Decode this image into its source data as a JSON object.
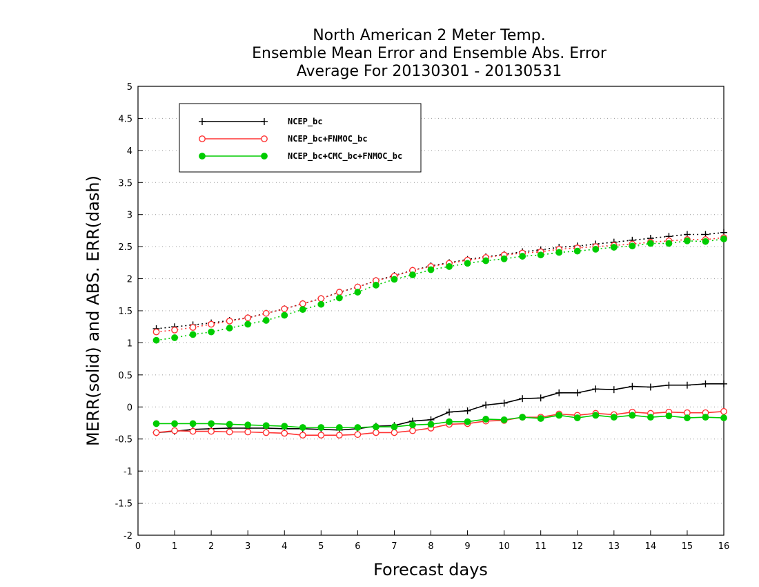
{
  "chart_data": {
    "type": "line",
    "title_lines": [
      "North American 2 Meter Temp.",
      "Ensemble Mean Error and Ensemble Abs. Error",
      "Average For 20130301 - 20130531"
    ],
    "xlabel": "Forecast days",
    "ylabel": "MERR(solid) and ABS. ERR(dash)",
    "xlim": [
      0,
      16
    ],
    "ylim": [
      -2,
      5
    ],
    "x_ticks": [
      "0",
      "1",
      "2",
      "3",
      "4",
      "5",
      "6",
      "7",
      "8",
      "9",
      "10",
      "11",
      "12",
      "13",
      "14",
      "15",
      "16"
    ],
    "y_ticks": [
      "-2",
      "-1.5",
      "-1",
      "-0.5",
      "0",
      "0.5",
      "1",
      "1.5",
      "2",
      "2.5",
      "3",
      "3.5",
      "4",
      "4.5",
      "5"
    ],
    "grid": "horizontal dotted",
    "legend_position": "top-left",
    "x": [
      0.5,
      1,
      1.5,
      2,
      2.5,
      3,
      3.5,
      4,
      4.5,
      5,
      5.5,
      6,
      6.5,
      7,
      7.5,
      8,
      8.5,
      9,
      9.5,
      10,
      10.5,
      11,
      11.5,
      12,
      12.5,
      13,
      13.5,
      14,
      14.5,
      15,
      15.5,
      16
    ],
    "series": [
      {
        "name": "NCEP_bc",
        "color": "#000000",
        "marker": "plus",
        "mean_error": [
          -0.4,
          -0.38,
          -0.35,
          -0.34,
          -0.33,
          -0.33,
          -0.33,
          -0.34,
          -0.34,
          -0.35,
          -0.36,
          -0.34,
          -0.3,
          -0.29,
          -0.22,
          -0.2,
          -0.08,
          -0.06,
          0.03,
          0.06,
          0.13,
          0.14,
          0.22,
          0.22,
          0.28,
          0.27,
          0.32,
          0.31,
          0.34,
          0.34,
          0.36,
          0.36
        ],
        "abs_error": [
          1.22,
          1.25,
          1.28,
          1.31,
          1.35,
          1.39,
          1.46,
          1.53,
          1.61,
          1.69,
          1.79,
          1.87,
          1.97,
          2.05,
          2.13,
          2.2,
          2.25,
          2.3,
          2.34,
          2.38,
          2.42,
          2.45,
          2.49,
          2.51,
          2.54,
          2.57,
          2.6,
          2.63,
          2.66,
          2.69,
          2.69,
          2.72
        ]
      },
      {
        "name": "NCEP_bc+FNMOC_bc",
        "color": "#ff3333",
        "marker": "open-circle",
        "mean_error": [
          -0.4,
          -0.37,
          -0.38,
          -0.38,
          -0.39,
          -0.39,
          -0.4,
          -0.41,
          -0.44,
          -0.44,
          -0.44,
          -0.43,
          -0.4,
          -0.4,
          -0.37,
          -0.33,
          -0.27,
          -0.26,
          -0.22,
          -0.21,
          -0.16,
          -0.16,
          -0.11,
          -0.13,
          -0.1,
          -0.12,
          -0.08,
          -0.1,
          -0.08,
          -0.09,
          -0.09,
          -0.07
        ],
        "abs_error": [
          1.17,
          1.2,
          1.24,
          1.29,
          1.34,
          1.39,
          1.46,
          1.53,
          1.61,
          1.69,
          1.79,
          1.87,
          1.97,
          2.04,
          2.13,
          2.19,
          2.24,
          2.29,
          2.33,
          2.37,
          2.4,
          2.42,
          2.46,
          2.48,
          2.5,
          2.52,
          2.54,
          2.57,
          2.59,
          2.61,
          2.61,
          2.64
        ]
      },
      {
        "name": "NCEP_bc+CMC_bc+FNMOC_bc",
        "color": "#00cc00",
        "marker": "filled-circle",
        "mean_error": [
          -0.26,
          -0.26,
          -0.26,
          -0.26,
          -0.27,
          -0.28,
          -0.29,
          -0.3,
          -0.32,
          -0.32,
          -0.32,
          -0.32,
          -0.31,
          -0.31,
          -0.28,
          -0.27,
          -0.23,
          -0.23,
          -0.19,
          -0.2,
          -0.16,
          -0.18,
          -0.13,
          -0.17,
          -0.13,
          -0.16,
          -0.13,
          -0.16,
          -0.14,
          -0.17,
          -0.16,
          -0.17
        ],
        "abs_error": [
          1.04,
          1.08,
          1.13,
          1.17,
          1.23,
          1.29,
          1.35,
          1.43,
          1.52,
          1.6,
          1.7,
          1.79,
          1.9,
          1.99,
          2.06,
          2.14,
          2.19,
          2.24,
          2.28,
          2.31,
          2.35,
          2.37,
          2.41,
          2.43,
          2.46,
          2.49,
          2.51,
          2.55,
          2.55,
          2.59,
          2.58,
          2.62
        ]
      }
    ]
  }
}
